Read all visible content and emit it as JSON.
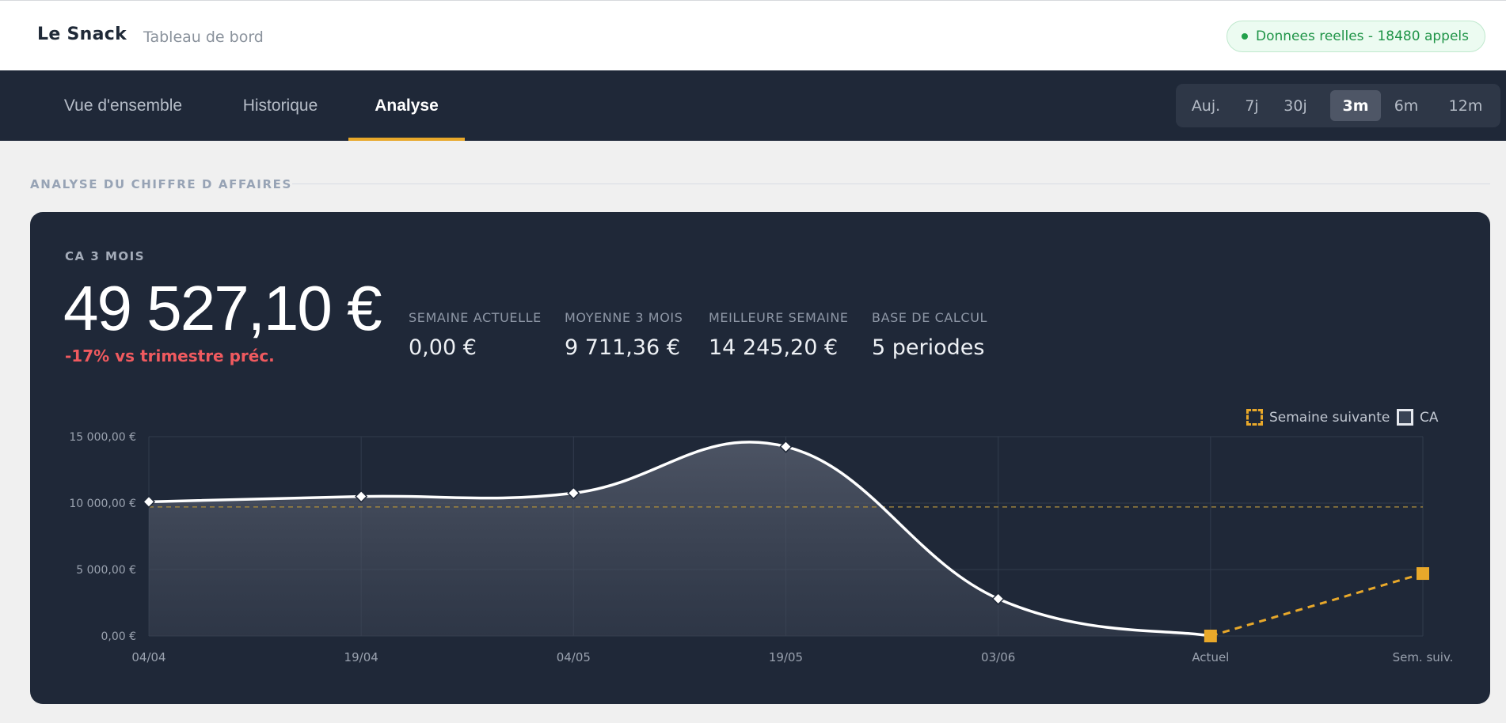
{
  "header": {
    "brand": "Le Snack",
    "subtitle": "Tableau de bord",
    "status": "Donnees reelles - 18480 appels",
    "status_color": "#22a04b"
  },
  "nav": {
    "tabs": [
      {
        "label": "Vue d'ensemble",
        "active": false
      },
      {
        "label": "Historique",
        "active": false
      },
      {
        "label": "Analyse",
        "active": true
      }
    ],
    "ranges": [
      {
        "label": "Auj.",
        "active": false
      },
      {
        "label": "7j",
        "active": false
      },
      {
        "label": "30j",
        "active": false
      },
      {
        "label": "3m",
        "active": true
      },
      {
        "label": "6m",
        "active": false
      },
      {
        "label": "12m",
        "active": false
      }
    ]
  },
  "section": {
    "title": "ANALYSE DU CHIFFRE D AFFAIRES"
  },
  "kpis": {
    "main_label": "CA 3 MOIS",
    "main_value": "49 527,10 €",
    "delta": "-17% vs trimestre préc.",
    "items": [
      {
        "label": "SEMAINE ACTUELLE",
        "value": "0,00 €"
      },
      {
        "label": "MOYENNE 3 MOIS",
        "value": "9 711,36 €"
      },
      {
        "label": "MEILLEURE SEMAINE",
        "value": "14 245,20 €"
      },
      {
        "label": "BASE DE CALCUL",
        "value": "5 periodes"
      }
    ]
  },
  "colors": {
    "accent": "#e8a82a",
    "negative": "#f05a5f",
    "card_bg": "#1f2838",
    "line": "#ffffff"
  },
  "chart_data": {
    "type": "line",
    "categories": [
      "04/04",
      "19/04",
      "04/05",
      "19/05",
      "03/06",
      "Actuel",
      "Sem. suiv."
    ],
    "ylim": [
      0,
      15000
    ],
    "yticks": [
      0,
      5000,
      10000,
      15000
    ],
    "ytick_labels": [
      "0,00 €",
      "5 000,00 €",
      "10 000,00 €",
      "15 000,00 €"
    ],
    "average_line": 9711.36,
    "grid": true,
    "legend_position": "top-right",
    "series": [
      {
        "name": "CA",
        "style": "solid-area",
        "color": "#ffffff",
        "values": [
          10100,
          10500,
          10750,
          14245.2,
          2800,
          0,
          null
        ]
      },
      {
        "name": "Semaine suivante",
        "style": "dashed",
        "color": "#e8a82a",
        "values": [
          null,
          null,
          null,
          null,
          null,
          0,
          4700
        ]
      }
    ]
  }
}
